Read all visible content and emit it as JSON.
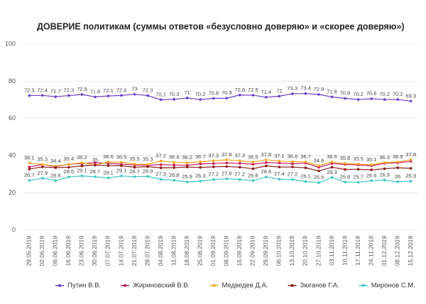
{
  "chart_data": {
    "type": "line",
    "title": "ДОВЕРИЕ политикам (суммы ответов «безусловно доверяю» и «скорее доверяю»)",
    "categories": [
      "29.05.2019",
      "02.06.2019",
      "09.06.2019",
      "16.06.2019",
      "23.06.2019",
      "30.06.2019",
      "07.07.2019",
      "14.07.2019",
      "21.07.2019",
      "28.07.2019",
      "04.08.2019",
      "11.08.2019",
      "18.08.2019",
      "25.08.2019",
      "01.09.2019",
      "08.09.2019",
      "15.09.2019",
      "22.09.2019",
      "29.09.2019",
      "06.10.2019",
      "13.10.2019",
      "20.10.2019",
      "27.10.2019",
      "03.11.2019",
      "10.11.2019",
      "17.11.2019",
      "24.11.2019",
      "01.12.2019",
      "08.12.2019",
      "15.12.2019"
    ],
    "series": [
      {
        "name": "Путин В.В.",
        "color": "#6a3fc8",
        "labels": true,
        "values": [
          72.3,
          72.4,
          71.7,
          72.3,
          72.9,
          71.6,
          72.1,
          72.4,
          73,
          72.3,
          70.1,
          70.3,
          71,
          70.2,
          70.8,
          70.9,
          72.6,
          72.5,
          71.4,
          72,
          73.3,
          73.4,
          72.9,
          71.6,
          70.8,
          70.2,
          70.6,
          70.2,
          70.2,
          69.3
        ]
      },
      {
        "name": "Жириновский В.В.",
        "color": "#c2185b",
        "labels": false,
        "values": [
          33.9,
          35.3,
          34.1,
          35.4,
          35.8,
          36.2,
          35.9,
          35.5,
          35.0,
          34.8,
          35.2,
          35.0,
          34.8,
          35.6,
          35.8,
          36.1,
          35.9,
          35.4,
          36.3,
          36.1,
          35.7,
          36.0,
          33.8,
          35.8,
          35.3,
          35.0,
          34.6,
          35.9,
          36.2,
          37.0
        ]
      },
      {
        "name": "Медведев Д.А.",
        "color": "#f5a623",
        "labels": true,
        "values": [
          36.1,
          35.3,
          34.4,
          35.4,
          36.2,
          35,
          36.6,
          36.5,
          35.5,
          35.3,
          37.2,
          36.4,
          36.2,
          36.7,
          37.3,
          37.8,
          37.3,
          36.5,
          37.8,
          37.1,
          36.8,
          36.7,
          34.6,
          36.6,
          35.8,
          35.5,
          35.1,
          36.3,
          36.6,
          37.8
        ]
      },
      {
        "name": "Зюганов Г.А.",
        "color": "#8b1a1a",
        "labels": false,
        "values": [
          32.8,
          34.0,
          33.6,
          33.8,
          34.5,
          34.9,
          34.7,
          34.6,
          33.8,
          34.1,
          33.5,
          33.6,
          33.9,
          33.7,
          34.0,
          34.2,
          33.8,
          33.0,
          34.5,
          33.9,
          33.9,
          33.5,
          31.8,
          33.8,
          32.6,
          32.7,
          32.4,
          33.0,
          33.5,
          33.2
        ]
      },
      {
        "name": "Миронов С.М.",
        "color": "#3ec6c6",
        "labels": true,
        "values": [
          26.7,
          27.9,
          26.6,
          28.6,
          29.1,
          28.7,
          28.1,
          29.1,
          28.7,
          28.9,
          27.3,
          26.8,
          25.9,
          26.3,
          27.2,
          27.6,
          27.2,
          26.6,
          28.6,
          27.4,
          27.2,
          26.1,
          25.5,
          28.3,
          25.8,
          25.7,
          26.6,
          26.9,
          26,
          26.3
        ]
      }
    ],
    "ylim": [
      0,
      100
    ],
    "yticks": [
      0,
      20,
      40,
      60,
      80,
      100
    ],
    "grid": true
  }
}
